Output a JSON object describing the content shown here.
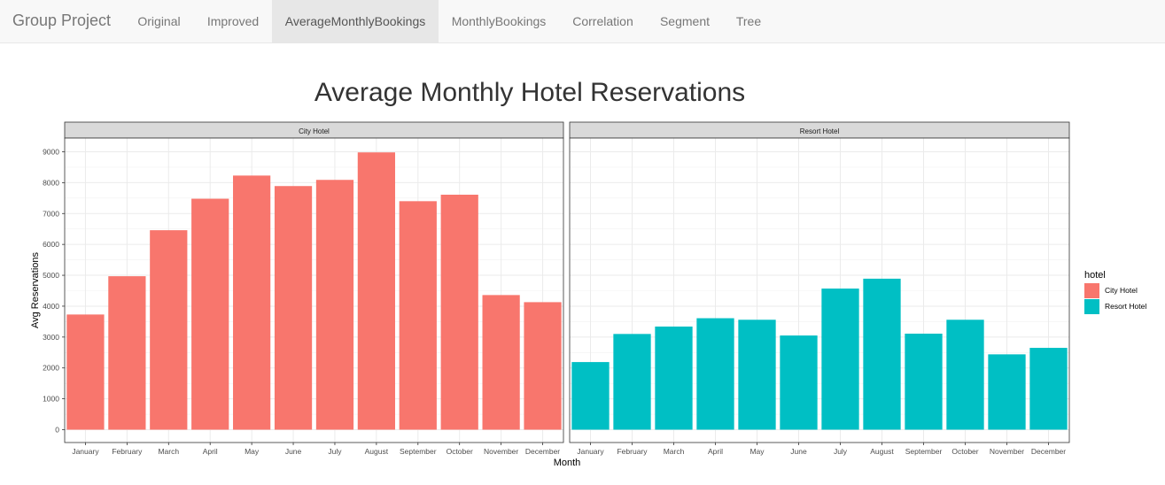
{
  "navbar": {
    "brand": "Group Project",
    "tabs": [
      {
        "label": "Original",
        "active": false
      },
      {
        "label": "Improved",
        "active": false
      },
      {
        "label": "AverageMonthlyBookings",
        "active": true
      },
      {
        "label": "MonthlyBookings",
        "active": false
      },
      {
        "label": "Correlation",
        "active": false
      },
      {
        "label": "Segment",
        "active": false
      },
      {
        "label": "Tree",
        "active": false
      }
    ]
  },
  "chart_data": {
    "type": "bar",
    "title": "Average Monthly Hotel Reservations",
    "xlabel": "Month",
    "ylabel": "Avg Reservations",
    "ylim": [
      0,
      9000
    ],
    "yticks": [
      0,
      1000,
      2000,
      3000,
      4000,
      5000,
      6000,
      7000,
      8000,
      9000
    ],
    "grid": true,
    "legend": {
      "title": "hotel",
      "position": "right"
    },
    "categories": [
      "January",
      "February",
      "March",
      "April",
      "May",
      "June",
      "July",
      "August",
      "September",
      "October",
      "November",
      "December"
    ],
    "series": [
      {
        "name": "City Hotel",
        "color": "#F8766D",
        "values": [
          3730,
          4970,
          6460,
          7480,
          8230,
          7890,
          8090,
          8980,
          7400,
          7610,
          4360,
          4130
        ]
      },
      {
        "name": "Resort Hotel",
        "color": "#00BFC4",
        "values": [
          2190,
          3100,
          3340,
          3610,
          3560,
          3050,
          4570,
          4890,
          3110,
          3560,
          2440,
          2650
        ]
      }
    ]
  }
}
